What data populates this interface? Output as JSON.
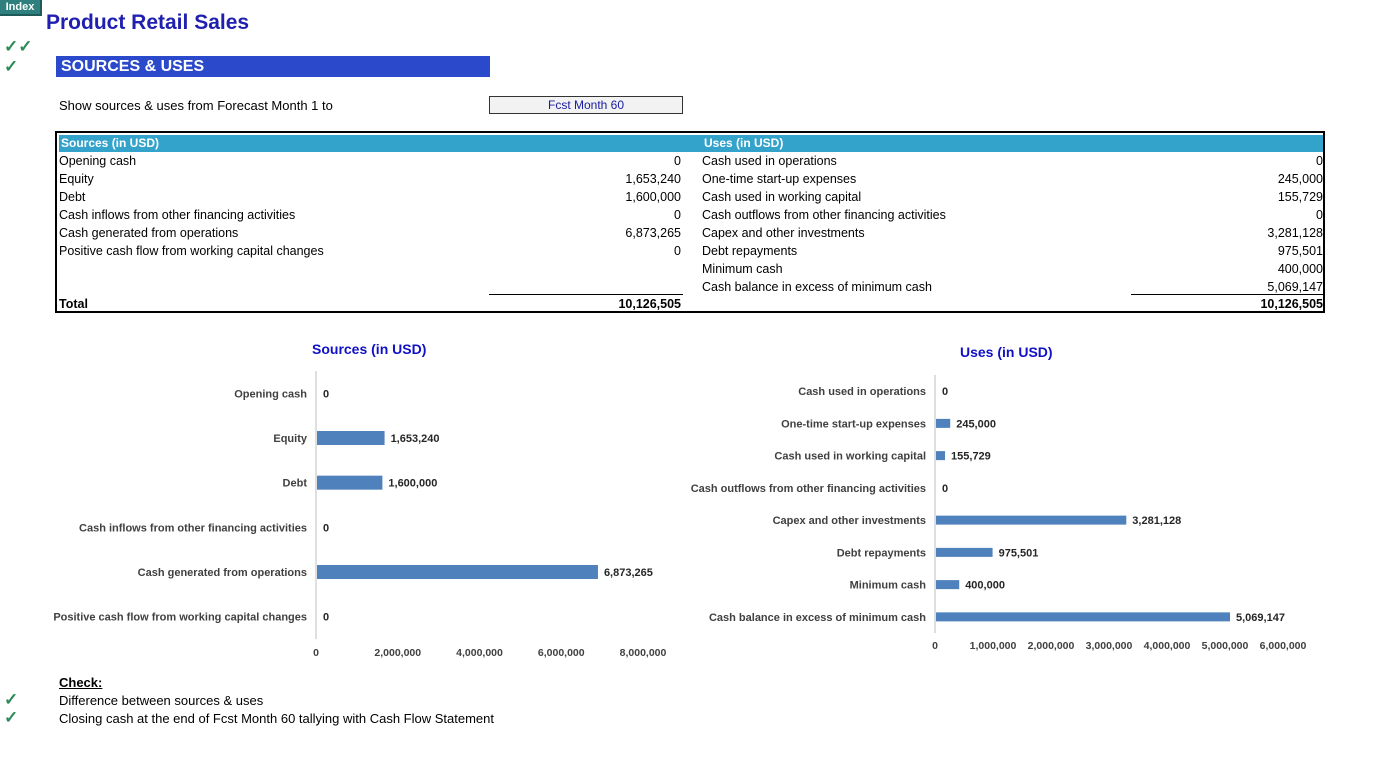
{
  "index_tab": "Index",
  "title": "Product Retail Sales",
  "section_banner": "SOURCES & USES",
  "top_checks": [
    "✓✓",
    "✓"
  ],
  "forecast_selector": {
    "label": "Show sources & uses from Forecast Month 1 to",
    "value": "Fcst Month 60"
  },
  "table": {
    "sources_header": "Sources (in USD)",
    "uses_header": "Uses (in USD)",
    "sources": [
      {
        "label": "Opening cash",
        "value": "0"
      },
      {
        "label": "Equity",
        "value": "1,653,240"
      },
      {
        "label": "Debt",
        "value": "1,600,000"
      },
      {
        "label": "Cash inflows from other financing activities",
        "value": "0"
      },
      {
        "label": "Cash generated from operations",
        "value": "6,873,265"
      },
      {
        "label": "Positive cash flow from working capital changes",
        "value": "0"
      }
    ],
    "uses": [
      {
        "label": "Cash used in operations",
        "value": "0"
      },
      {
        "label": "One-time start-up expenses",
        "value": "245,000"
      },
      {
        "label": "Cash used in working capital",
        "value": "155,729"
      },
      {
        "label": "Cash outflows from other  financing activities",
        "value": "0"
      },
      {
        "label": "Capex and other investments",
        "value": "3,281,128"
      },
      {
        "label": "Debt repayments",
        "value": "975,501"
      },
      {
        "label": "Minimum cash",
        "value": "400,000"
      },
      {
        "label": "Cash balance in excess of minimum cash",
        "value": "5,069,147"
      }
    ],
    "total_label": "Total",
    "sources_total": "10,126,505",
    "uses_total": "10,126,505"
  },
  "chart_data": [
    {
      "type": "bar",
      "orientation": "horizontal",
      "title": "Sources (in USD)",
      "categories": [
        "Opening cash",
        "Equity",
        "Debt",
        "Cash inflows from other financing activities",
        "Cash generated from operations",
        "Positive cash flow from working capital changes"
      ],
      "values": [
        0,
        1653240,
        1600000,
        0,
        6873265,
        0
      ],
      "data_labels": [
        "0",
        "1,653,240",
        "1,600,000",
        "0",
        "6,873,265",
        "0"
      ],
      "xlim": [
        0,
        8000000
      ],
      "ticks": [
        0,
        2000000,
        4000000,
        6000000,
        8000000
      ],
      "tick_labels": [
        "0",
        "2,000,000",
        "4,000,000",
        "6,000,000",
        "8,000,000"
      ],
      "bar_color": "#4f81bd",
      "grid": false
    },
    {
      "type": "bar",
      "orientation": "horizontal",
      "title": "Uses (in USD)",
      "categories": [
        "Cash used in operations",
        "One-time start-up expenses",
        "Cash used in working capital",
        "Cash outflows from other  financing activities",
        "Capex and other investments",
        "Debt repayments",
        "Minimum cash",
        "Cash balance in excess of minimum cash"
      ],
      "values": [
        0,
        245000,
        155729,
        0,
        3281128,
        975501,
        400000,
        5069147
      ],
      "data_labels": [
        "0",
        "245,000",
        "155,729",
        "0",
        "3,281,128",
        "975,501",
        "400,000",
        "5,069,147"
      ],
      "xlim": [
        0,
        6000000
      ],
      "ticks": [
        0,
        1000000,
        2000000,
        3000000,
        4000000,
        5000000,
        6000000
      ],
      "tick_labels": [
        "0",
        "1,000,000",
        "2,000,000",
        "3,000,000",
        "4,000,000",
        "5,000,000",
        "6,000,000"
      ],
      "bar_color": "#4f81bd",
      "grid": false
    }
  ],
  "checks": {
    "heading": "Check:",
    "items": [
      {
        "mark": "✓",
        "label": "Difference between sources & uses"
      },
      {
        "mark": "✓",
        "label": "Closing cash at the end of Fcst Month 60 tallying with Cash Flow Statement"
      }
    ]
  }
}
